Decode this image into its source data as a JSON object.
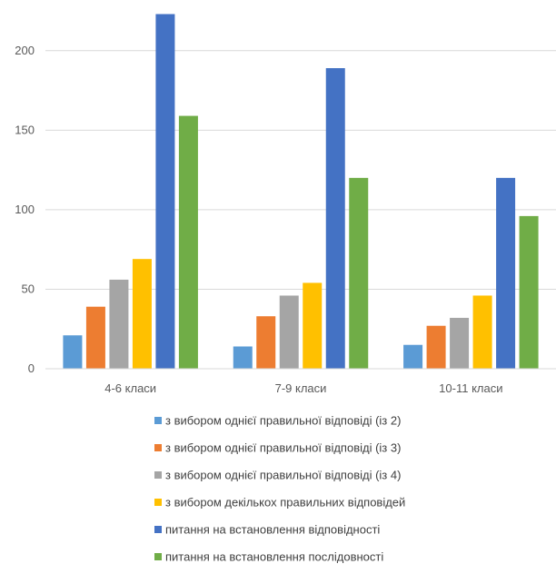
{
  "chart_data": {
    "type": "bar",
    "categories": [
      "4-6 класи",
      "7-9 класи",
      "10-11 класи"
    ],
    "series": [
      {
        "name": "з вибором однієї правильної відповіді (із 2)",
        "values": [
          21,
          14,
          15
        ],
        "color": "#5B9BD5"
      },
      {
        "name": "з вибором однієї правильної відповіді (із 3)",
        "values": [
          39,
          33,
          27
        ],
        "color": "#ED7D31"
      },
      {
        "name": "з вибором однієї правильної відповіді (із 4)",
        "values": [
          56,
          46,
          32
        ],
        "color": "#A5A5A5"
      },
      {
        "name": "з вибором декількох правильних відповідей",
        "values": [
          69,
          54,
          46
        ],
        "color": "#FFC000"
      },
      {
        "name": "питання на встановлення відповідності",
        "values": [
          223,
          189,
          120
        ],
        "color": "#4472C4"
      },
      {
        "name": "питання на встановлення послідовності",
        "values": [
          159,
          120,
          96
        ],
        "color": "#70AD47"
      }
    ],
    "y_ticks": [
      0,
      50,
      100,
      150,
      200
    ],
    "ylim": [
      0,
      225
    ],
    "grid": true,
    "legend": "bottom"
  }
}
